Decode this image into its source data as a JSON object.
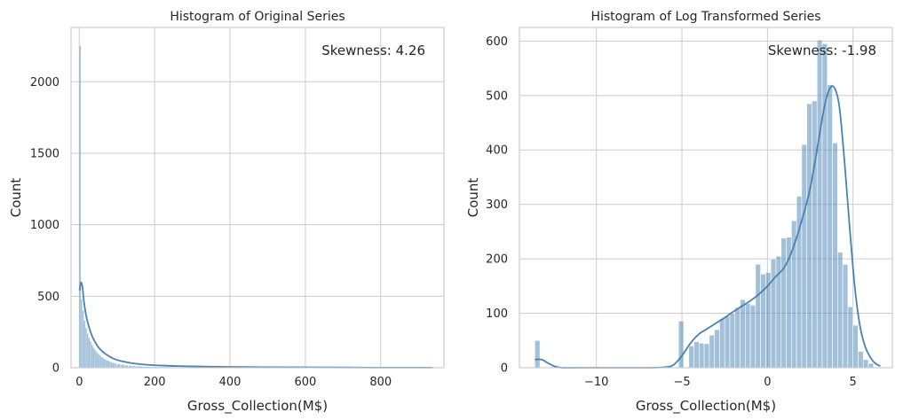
{
  "chart_data": [
    {
      "type": "bar",
      "title": "Histogram of Original Series",
      "xlabel": "Gross_Collection(M$)",
      "ylabel": "Count",
      "xlim": [
        -22,
        968
      ],
      "ylim": [
        0,
        2380
      ],
      "xticks": [
        0,
        200,
        400,
        600,
        800
      ],
      "yticks": [
        0,
        500,
        1000,
        1500,
        2000
      ],
      "grid": true,
      "annotation": "Skewness: 4.26",
      "annotation_position": "top-right",
      "color": "#4682b4",
      "bin_edges": [
        0,
        4,
        8,
        12,
        16,
        20,
        24,
        28,
        32,
        36,
        40,
        44,
        48,
        52,
        56,
        60,
        64,
        68,
        72,
        76,
        80,
        84,
        88,
        92,
        96,
        100,
        110,
        120,
        130,
        140,
        150,
        170,
        190,
        210,
        240,
        270,
        300,
        340,
        380,
        420,
        470,
        520,
        580,
        640,
        700,
        760,
        820,
        880,
        938
      ],
      "values": [
        2250,
        480,
        400,
        330,
        280,
        240,
        210,
        185,
        160,
        140,
        125,
        110,
        98,
        88,
        79,
        71,
        64,
        58,
        52,
        47,
        43,
        39,
        35,
        32,
        29,
        26,
        22,
        18,
        15,
        13,
        11,
        9,
        7,
        6,
        5,
        4,
        3,
        3,
        2,
        2,
        2,
        1,
        1,
        1,
        1,
        1,
        1,
        1
      ],
      "kde": {
        "x": [
          1,
          4,
          8,
          12,
          17,
          22,
          28,
          35,
          45,
          55,
          70,
          90,
          110,
          140,
          180,
          220,
          270,
          330,
          400,
          500,
          600,
          700,
          800,
          938
        ],
        "y": [
          540,
          595,
          570,
          470,
          380,
          320,
          265,
          215,
          165,
          130,
          95,
          65,
          47,
          32,
          21,
          15,
          11,
          8,
          6,
          4,
          3,
          2,
          1,
          1
        ]
      }
    },
    {
      "type": "bar",
      "title": "Histogram of Log Transformed Series",
      "xlabel": "Gross_Collection(M$)",
      "ylabel": "Count",
      "xlim": [
        -14.5,
        7.3
      ],
      "ylim": [
        0,
        625
      ],
      "xticks": [
        -10,
        -5,
        0,
        5
      ],
      "yticks": [
        0,
        100,
        200,
        300,
        400,
        500,
        600
      ],
      "grid": true,
      "annotation": "Skewness: -1.98",
      "annotation_position": "top-right",
      "color": "#4682b4",
      "bin_start": -13.6,
      "bin_width": 0.3,
      "values": [
        50,
        0,
        0,
        0,
        0,
        0,
        0,
        0,
        0,
        0,
        0,
        0,
        0,
        0,
        0,
        0,
        0,
        0,
        0,
        0,
        0,
        0,
        0,
        0,
        0,
        0,
        0,
        0,
        86,
        0,
        40,
        48,
        45,
        44,
        60,
        70,
        90,
        95,
        100,
        110,
        125,
        118,
        115,
        190,
        172,
        175,
        200,
        205,
        238,
        240,
        270,
        315,
        410,
        485,
        490,
        602,
        595,
        520,
        413,
        212,
        190,
        112,
        78,
        30,
        15,
        8
      ],
      "kde": {
        "x": [
          -13.6,
          -13.2,
          -12.8,
          -12.4,
          -12.0,
          -11.0,
          -9.0,
          -7.0,
          -6.0,
          -5.5,
          -5.0,
          -4.5,
          -4.0,
          -3.5,
          -3.0,
          -2.5,
          -2.0,
          -1.5,
          -1.0,
          -0.5,
          0.0,
          0.5,
          1.0,
          1.5,
          2.0,
          2.5,
          3.0,
          3.3,
          3.6,
          3.9,
          4.2,
          4.5,
          4.8,
          5.1,
          5.4,
          5.7,
          6.0,
          6.3,
          6.6
        ],
        "y": [
          15,
          15,
          8,
          2,
          0,
          0,
          0,
          0,
          1,
          5,
          22,
          45,
          62,
          72,
          82,
          92,
          103,
          113,
          123,
          135,
          150,
          168,
          185,
          220,
          270,
          330,
          420,
          475,
          510,
          515,
          480,
          380,
          260,
          150,
          78,
          40,
          20,
          8,
          3
        ]
      }
    }
  ]
}
